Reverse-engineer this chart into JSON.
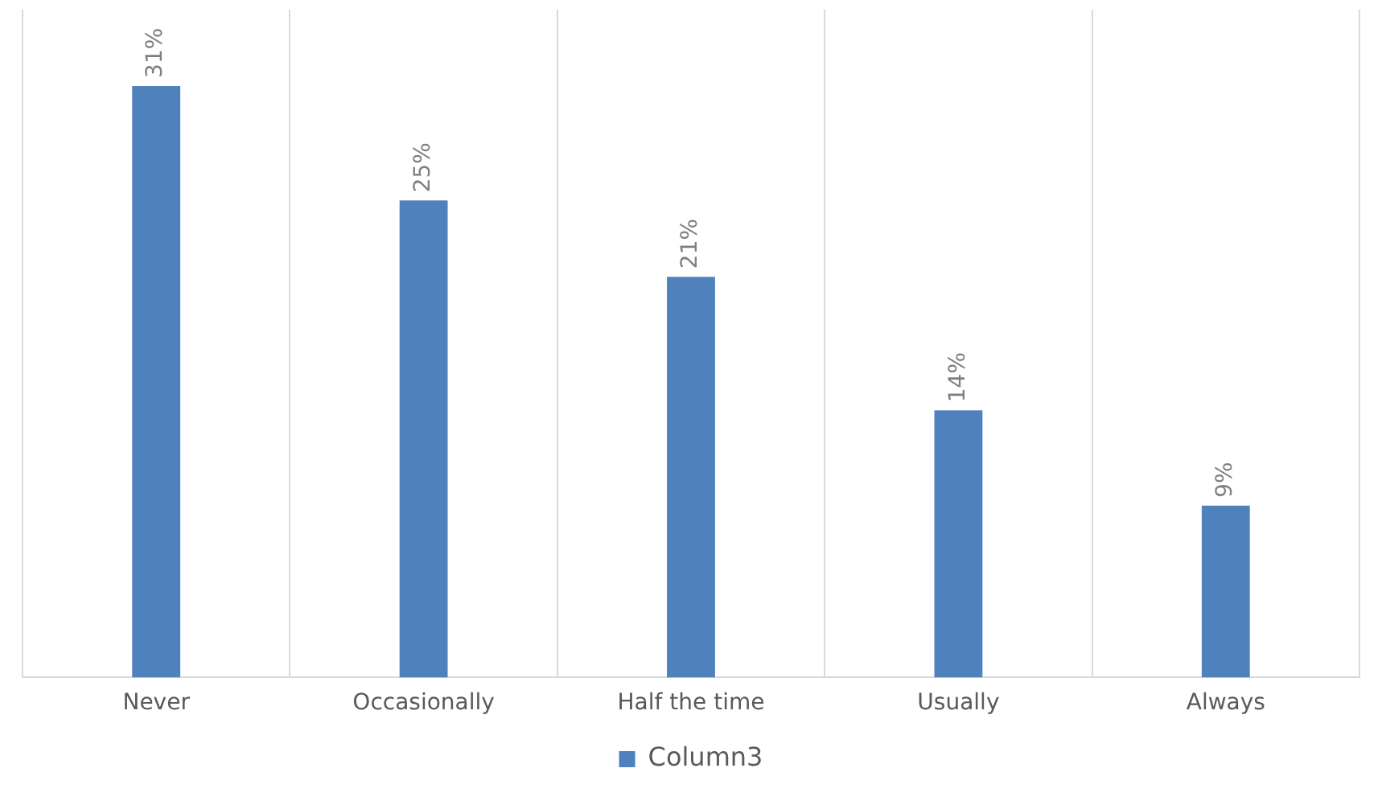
{
  "chart_data": {
    "type": "bar",
    "categories": [
      "Never",
      "Occasionally",
      "Half the time",
      "Usually",
      "Always"
    ],
    "series": [
      {
        "name": "Column3",
        "color": "#4f81bd",
        "values": [
          31,
          25,
          21,
          14,
          9
        ],
        "value_labels": [
          "31%",
          "25%",
          "21%",
          "14%",
          "9%"
        ]
      }
    ],
    "grid": "x",
    "legend": "bottom",
    "tick_labels": "x"
  }
}
